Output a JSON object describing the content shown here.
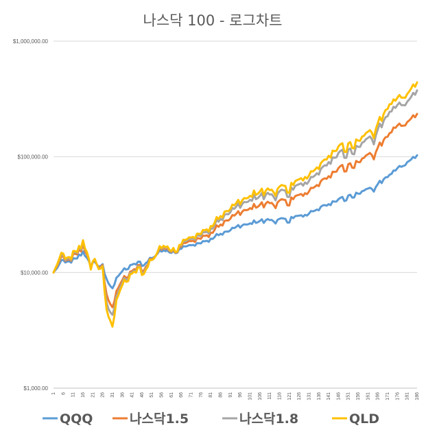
{
  "chart_data": {
    "type": "line",
    "title": "나스닥 100 - 로그차트",
    "yscale": "log",
    "ylim": [
      1000,
      1000000
    ],
    "yticks": [
      "$1,000.00",
      "$10,000.00",
      "$100,000.00",
      "$1,000,000.00"
    ],
    "ytick_values": [
      1000,
      10000,
      100000,
      1000000
    ],
    "x_start": 1,
    "x_end": 186,
    "x_tick_step": 5,
    "grid": "horizontal",
    "legend_position": "bottom",
    "series": [
      {
        "name": "QQQ",
        "color": "#5B9BD5",
        "anchors": [
          [
            1,
            10000
          ],
          [
            3,
            11000
          ],
          [
            5,
            12800
          ],
          [
            7,
            12200
          ],
          [
            9,
            12500
          ],
          [
            12,
            13200
          ],
          [
            15,
            14000
          ],
          [
            16,
            15200
          ],
          [
            18,
            13400
          ],
          [
            20,
            11300
          ],
          [
            22,
            12400
          ],
          [
            24,
            11200
          ],
          [
            26,
            11800
          ],
          [
            28,
            8800
          ],
          [
            30,
            7600
          ],
          [
            31,
            7300
          ],
          [
            33,
            9000
          ],
          [
            35,
            9800
          ],
          [
            38,
            10600
          ],
          [
            41,
            11700
          ],
          [
            44,
            12400
          ],
          [
            46,
            11400
          ],
          [
            49,
            12400
          ],
          [
            51,
            13300
          ],
          [
            54,
            14600
          ],
          [
            57,
            15500
          ],
          [
            60,
            14900
          ],
          [
            63,
            14700
          ],
          [
            66,
            16000
          ],
          [
            69,
            16900
          ],
          [
            72,
            17300
          ],
          [
            75,
            17900
          ],
          [
            78,
            18600
          ],
          [
            81,
            19600
          ],
          [
            85,
            21000
          ],
          [
            89,
            22600
          ],
          [
            93,
            24200
          ],
          [
            97,
            25500
          ],
          [
            101,
            26600
          ],
          [
            105,
            27200
          ],
          [
            109,
            28300
          ],
          [
            112,
            28500
          ],
          [
            114,
            26500
          ],
          [
            117,
            29500
          ],
          [
            120,
            27000
          ],
          [
            123,
            29500
          ],
          [
            126,
            31000
          ],
          [
            129,
            31500
          ],
          [
            132,
            34000
          ],
          [
            135,
            35000
          ],
          [
            138,
            38000
          ],
          [
            141,
            39000
          ],
          [
            144,
            41000
          ],
          [
            146,
            43000
          ],
          [
            148,
            45000
          ],
          [
            150,
            42000
          ],
          [
            152,
            47000
          ],
          [
            154,
            44500
          ],
          [
            156,
            48000
          ],
          [
            159,
            51000
          ],
          [
            162,
            54000
          ],
          [
            164,
            50000
          ],
          [
            166,
            58000
          ],
          [
            169,
            64000
          ],
          [
            172,
            70000
          ],
          [
            175,
            76000
          ],
          [
            178,
            82000
          ],
          [
            181,
            90000
          ],
          [
            183,
            95000
          ],
          [
            186,
            103000
          ]
        ],
        "amp": 0.045
      },
      {
        "name": "나스닥1.5",
        "color": "#ED7D31",
        "anchors": [
          [
            1,
            10000
          ],
          [
            3,
            11500
          ],
          [
            5,
            13800
          ],
          [
            7,
            12600
          ],
          [
            9,
            13000
          ],
          [
            12,
            14500
          ],
          [
            15,
            15200
          ],
          [
            16,
            17500
          ],
          [
            18,
            14300
          ],
          [
            20,
            11000
          ],
          [
            22,
            12800
          ],
          [
            24,
            11000
          ],
          [
            26,
            11600
          ],
          [
            28,
            6500
          ],
          [
            30,
            5300
          ],
          [
            31,
            5000
          ],
          [
            33,
            6900
          ],
          [
            35,
            8000
          ],
          [
            38,
            9000
          ],
          [
            41,
            10300
          ],
          [
            44,
            11600
          ],
          [
            46,
            10200
          ],
          [
            49,
            11700
          ],
          [
            51,
            13000
          ],
          [
            54,
            14900
          ],
          [
            57,
            16300
          ],
          [
            60,
            15300
          ],
          [
            63,
            14800
          ],
          [
            66,
            16700
          ],
          [
            69,
            18200
          ],
          [
            72,
            18800
          ],
          [
            75,
            19700
          ],
          [
            78,
            20700
          ],
          [
            81,
            22100
          ],
          [
            85,
            24800
          ],
          [
            89,
            28200
          ],
          [
            93,
            31000
          ],
          [
            97,
            33500
          ],
          [
            101,
            36000
          ],
          [
            105,
            37000
          ],
          [
            109,
            39500
          ],
          [
            112,
            40000
          ],
          [
            114,
            36000
          ],
          [
            117,
            43000
          ],
          [
            120,
            38000
          ],
          [
            123,
            43000
          ],
          [
            126,
            47000
          ],
          [
            129,
            48500
          ],
          [
            132,
            54000
          ],
          [
            135,
            57000
          ],
          [
            138,
            64000
          ],
          [
            141,
            68000
          ],
          [
            144,
            74000
          ],
          [
            146,
            80000
          ],
          [
            148,
            85000
          ],
          [
            150,
            75000
          ],
          [
            152,
            88000
          ],
          [
            154,
            80000
          ],
          [
            156,
            90000
          ],
          [
            159,
            98000
          ],
          [
            162,
            108000
          ],
          [
            164,
            95000
          ],
          [
            166,
            120000
          ],
          [
            169,
            140000
          ],
          [
            172,
            160000
          ],
          [
            175,
            178000
          ],
          [
            178,
            185000
          ],
          [
            181,
            200000
          ],
          [
            183,
            215000
          ],
          [
            186,
            235000
          ]
        ],
        "amp": 0.065
      },
      {
        "name": "나스닥1.8",
        "color": "#A5A5A5",
        "anchors": [
          [
            1,
            10000
          ],
          [
            3,
            11700
          ],
          [
            5,
            14300
          ],
          [
            7,
            12800
          ],
          [
            9,
            13300
          ],
          [
            12,
            15000
          ],
          [
            15,
            15800
          ],
          [
            16,
            18500
          ],
          [
            18,
            14800
          ],
          [
            20,
            10800
          ],
          [
            22,
            13000
          ],
          [
            24,
            10800
          ],
          [
            26,
            11400
          ],
          [
            28,
            5500
          ],
          [
            30,
            4500
          ],
          [
            31,
            4300
          ],
          [
            33,
            6200
          ],
          [
            35,
            7500
          ],
          [
            38,
            8600
          ],
          [
            41,
            10000
          ],
          [
            44,
            11300
          ],
          [
            46,
            9800
          ],
          [
            49,
            11400
          ],
          [
            51,
            12800
          ],
          [
            54,
            15000
          ],
          [
            57,
            16700
          ],
          [
            60,
            15500
          ],
          [
            63,
            14900
          ],
          [
            66,
            17100
          ],
          [
            69,
            18900
          ],
          [
            72,
            19700
          ],
          [
            75,
            20800
          ],
          [
            78,
            22200
          ],
          [
            81,
            24000
          ],
          [
            85,
            27500
          ],
          [
            89,
            32000
          ],
          [
            93,
            35500
          ],
          [
            97,
            39000
          ],
          [
            101,
            42500
          ],
          [
            105,
            44000
          ],
          [
            109,
            47000
          ],
          [
            112,
            47500
          ],
          [
            114,
            42000
          ],
          [
            117,
            52000
          ],
          [
            120,
            45000
          ],
          [
            123,
            52000
          ],
          [
            126,
            58000
          ],
          [
            129,
            60000
          ],
          [
            132,
            67000
          ],
          [
            135,
            72000
          ],
          [
            138,
            82000
          ],
          [
            141,
            90000
          ],
          [
            144,
            98000
          ],
          [
            146,
            108000
          ],
          [
            148,
            115000
          ],
          [
            150,
            98000
          ],
          [
            152,
            118000
          ],
          [
            154,
            105000
          ],
          [
            156,
            122000
          ],
          [
            159,
            135000
          ],
          [
            162,
            150000
          ],
          [
            164,
            128000
          ],
          [
            166,
            172000
          ],
          [
            169,
            205000
          ],
          [
            172,
            245000
          ],
          [
            175,
            265000
          ],
          [
            178,
            280000
          ],
          [
            181,
            300000
          ],
          [
            183,
            330000
          ],
          [
            186,
            375000
          ]
        ],
        "amp": 0.075
      },
      {
        "name": "QLD",
        "color": "#FFC000",
        "anchors": [
          [
            1,
            10000
          ],
          [
            3,
            11900
          ],
          [
            5,
            14800
          ],
          [
            7,
            13100
          ],
          [
            9,
            13600
          ],
          [
            12,
            15300
          ],
          [
            15,
            16100
          ],
          [
            16,
            19000
          ],
          [
            18,
            15000
          ],
          [
            20,
            10600
          ],
          [
            22,
            13100
          ],
          [
            24,
            10700
          ],
          [
            26,
            11300
          ],
          [
            28,
            4800
          ],
          [
            30,
            3800
          ],
          [
            31,
            3400
          ],
          [
            33,
            5800
          ],
          [
            35,
            7100
          ],
          [
            38,
            8300
          ],
          [
            41,
            9800
          ],
          [
            44,
            11100
          ],
          [
            46,
            9500
          ],
          [
            49,
            11200
          ],
          [
            51,
            12800
          ],
          [
            54,
            15100
          ],
          [
            57,
            17000
          ],
          [
            60,
            15700
          ],
          [
            63,
            15000
          ],
          [
            66,
            17400
          ],
          [
            69,
            19400
          ],
          [
            72,
            20300
          ],
          [
            75,
            21600
          ],
          [
            78,
            23200
          ],
          [
            81,
            25200
          ],
          [
            85,
            29000
          ],
          [
            89,
            34000
          ],
          [
            93,
            38000
          ],
          [
            97,
            42000
          ],
          [
            101,
            46000
          ],
          [
            105,
            48000
          ],
          [
            109,
            51000
          ],
          [
            112,
            52000
          ],
          [
            114,
            46000
          ],
          [
            117,
            57000
          ],
          [
            120,
            49000
          ],
          [
            123,
            57000
          ],
          [
            126,
            64000
          ],
          [
            129,
            67000
          ],
          [
            132,
            75000
          ],
          [
            135,
            81000
          ],
          [
            138,
            92000
          ],
          [
            141,
            102000
          ],
          [
            144,
            112000
          ],
          [
            146,
            123000
          ],
          [
            148,
            131000
          ],
          [
            150,
            110000
          ],
          [
            152,
            134000
          ],
          [
            154,
            118000
          ],
          [
            156,
            138000
          ],
          [
            159,
            152000
          ],
          [
            162,
            170000
          ],
          [
            164,
            145000
          ],
          [
            166,
            195000
          ],
          [
            169,
            235000
          ],
          [
            172,
            285000
          ],
          [
            175,
            305000
          ],
          [
            178,
            325000
          ],
          [
            181,
            350000
          ],
          [
            183,
            390000
          ],
          [
            186,
            440000
          ]
        ],
        "amp": 0.08
      }
    ]
  }
}
